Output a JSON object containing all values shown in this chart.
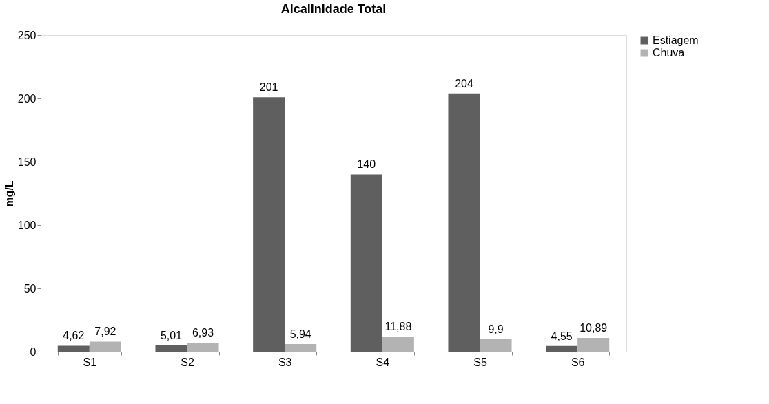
{
  "chart_data": {
    "type": "bar",
    "title": "Alcalinidade Total",
    "ylabel": "mg/L",
    "categories": [
      "S1",
      "S2",
      "S3",
      "S4",
      "S5",
      "S6"
    ],
    "series": [
      {
        "name": "Estiagem",
        "color": "#5f5f5f",
        "values": [
          4.62,
          5.01,
          201,
          140,
          204,
          4.55
        ],
        "value_labels": [
          "4,62",
          "5,01",
          "201",
          "140",
          "204",
          "4,55"
        ]
      },
      {
        "name": "Chuva",
        "color": "#b3b3b3",
        "values": [
          7.92,
          6.93,
          5.94,
          11.88,
          9.9,
          10.89
        ],
        "value_labels": [
          "7,92",
          "6,93",
          "5,94",
          "11,88",
          "9,9",
          "10,89"
        ]
      }
    ],
    "ylim": [
      0,
      250
    ],
    "yticks": [
      0,
      50,
      100,
      150,
      200,
      250
    ],
    "grid": false,
    "legend": "right"
  }
}
